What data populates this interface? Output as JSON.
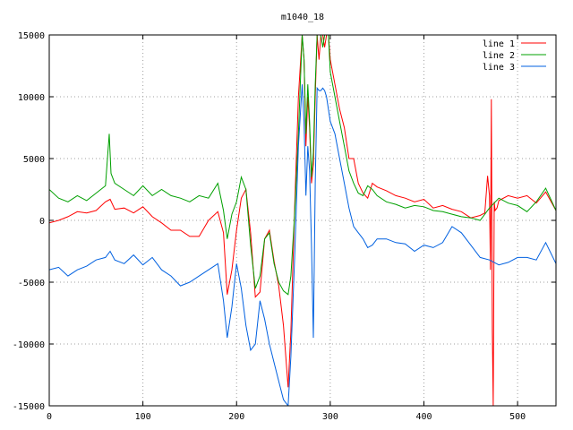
{
  "chart_data": {
    "type": "line",
    "title": "m1040_18",
    "xlabel": "",
    "ylabel": "",
    "xlim": [
      0,
      541
    ],
    "ylim": [
      -15000,
      15000
    ],
    "xticks": [
      0,
      100,
      200,
      300,
      400,
      500
    ],
    "yticks": [
      -15000,
      -10000,
      -5000,
      0,
      5000,
      10000,
      15000
    ],
    "grid": true,
    "legend_position": "top-right",
    "series": [
      {
        "name": "line 1",
        "color": "#ff0000",
        "x": [
          0,
          10,
          20,
          30,
          40,
          50,
          60,
          65,
          70,
          80,
          90,
          100,
          110,
          120,
          130,
          140,
          150,
          160,
          170,
          180,
          186,
          190,
          195,
          200,
          205,
          210,
          215,
          220,
          225,
          230,
          235,
          240,
          245,
          250,
          255,
          258,
          262,
          266,
          270,
          272,
          274,
          276,
          278,
          280,
          282,
          284,
          286,
          288,
          290,
          292,
          294,
          296,
          298,
          300,
          305,
          310,
          315,
          320,
          325,
          330,
          335,
          340,
          345,
          350,
          360,
          370,
          380,
          390,
          400,
          410,
          420,
          430,
          440,
          450,
          460,
          465,
          468,
          470,
          471,
          472,
          473,
          474,
          475,
          476,
          478,
          480,
          490,
          500,
          510,
          520,
          530,
          541
        ],
        "y": [
          -200,
          0,
          300,
          700,
          600,
          800,
          1500,
          1700,
          900,
          1000,
          600,
          1100,
          300,
          -200,
          -800,
          -800,
          -1300,
          -1300,
          0,
          700,
          -1000,
          -6000,
          -4000,
          -800,
          1800,
          2500,
          -1000,
          -6200,
          -5800,
          -1500,
          -800,
          -3300,
          -5300,
          -8500,
          -13500,
          -9000,
          1000,
          10000,
          15000,
          13000,
          6000,
          10000,
          7500,
          3000,
          4500,
          10000,
          15000,
          13000,
          15000,
          15000,
          14000,
          15000,
          15000,
          13000,
          11000,
          9000,
          7500,
          5000,
          5000,
          3000,
          2200,
          1800,
          3000,
          2700,
          2400,
          2000,
          1800,
          1500,
          1700,
          1000,
          1200,
          900,
          700,
          200,
          400,
          600,
          3600,
          2000,
          -4000,
          9800,
          -9000,
          -15000,
          1500,
          800,
          1000,
          1600,
          2000,
          1800,
          2000,
          1400,
          2300,
          800
        ]
      },
      {
        "name": "line 2",
        "color": "#00a000",
        "x": [
          0,
          10,
          20,
          30,
          40,
          50,
          60,
          64,
          66,
          70,
          80,
          90,
          100,
          110,
          120,
          130,
          140,
          150,
          160,
          170,
          180,
          186,
          190,
          195,
          200,
          205,
          210,
          215,
          220,
          225,
          230,
          235,
          240,
          245,
          250,
          255,
          258,
          262,
          266,
          270,
          272,
          274,
          276,
          278,
          280,
          282,
          284,
          286,
          288,
          290,
          292,
          294,
          296,
          298,
          300,
          305,
          310,
          315,
          320,
          325,
          330,
          335,
          340,
          345,
          350,
          360,
          370,
          380,
          390,
          400,
          410,
          420,
          430,
          440,
          450,
          460,
          470,
          480,
          490,
          500,
          510,
          520,
          530,
          541
        ],
        "y": [
          2500,
          1800,
          1500,
          2000,
          1600,
          2200,
          2800,
          7000,
          3800,
          3000,
          2500,
          2000,
          2800,
          2000,
          2500,
          2000,
          1800,
          1500,
          2000,
          1800,
          3000,
          800,
          -1500,
          500,
          1500,
          3500,
          2500,
          -2000,
          -5500,
          -4500,
          -1500,
          -1000,
          -3500,
          -5000,
          -5700,
          -6000,
          -4500,
          500,
          7000,
          15000,
          13000,
          7000,
          11000,
          8000,
          3500,
          5500,
          11000,
          15000,
          15000,
          15000,
          14000,
          15000,
          15000,
          15000,
          12000,
          10000,
          8000,
          6000,
          4000,
          3000,
          2200,
          2000,
          2800,
          2500,
          2000,
          1500,
          1300,
          1000,
          1200,
          1100,
          800,
          700,
          500,
          300,
          200,
          0,
          1000,
          1800,
          1400,
          1200,
          700,
          1500,
          2600,
          800
        ]
      },
      {
        "name": "line 3",
        "color": "#0060e0",
        "x": [
          0,
          10,
          20,
          30,
          40,
          50,
          60,
          65,
          70,
          80,
          90,
          100,
          110,
          120,
          130,
          140,
          150,
          160,
          170,
          180,
          186,
          190,
          195,
          200,
          205,
          210,
          215,
          220,
          225,
          230,
          235,
          240,
          245,
          250,
          255,
          258,
          262,
          266,
          270,
          272,
          274,
          276,
          278,
          280,
          282,
          284,
          286,
          288,
          290,
          292,
          294,
          296,
          298,
          300,
          305,
          310,
          315,
          320,
          325,
          330,
          335,
          340,
          345,
          350,
          360,
          370,
          380,
          390,
          400,
          410,
          420,
          430,
          440,
          450,
          460,
          470,
          480,
          490,
          500,
          510,
          520,
          530,
          541
        ],
        "y": [
          -4000,
          -3800,
          -4500,
          -4000,
          -3700,
          -3200,
          -3000,
          -2500,
          -3200,
          -3500,
          -2800,
          -3600,
          -3000,
          -4000,
          -4500,
          -5300,
          -5000,
          -4500,
          -4000,
          -3500,
          -6500,
          -9500,
          -7000,
          -3500,
          -5500,
          -8500,
          -10500,
          -10000,
          -6500,
          -8000,
          -10000,
          -11500,
          -13000,
          -14500,
          -15000,
          -11000,
          -3000,
          6000,
          11000,
          8000,
          2000,
          6000,
          4000,
          -2000,
          -9500,
          3000,
          10700,
          10500,
          10500,
          10700,
          10500,
          10000,
          9000,
          8000,
          7000,
          5000,
          3000,
          1000,
          -500,
          -1000,
          -1500,
          -2200,
          -2000,
          -1500,
          -1500,
          -1800,
          -1900,
          -2500,
          -2000,
          -2200,
          -1800,
          -500,
          -1000,
          -2000,
          -3000,
          -3200,
          -3600,
          -3400,
          -3000,
          -3000,
          -3200,
          -1800,
          -3500
        ]
      }
    ]
  }
}
